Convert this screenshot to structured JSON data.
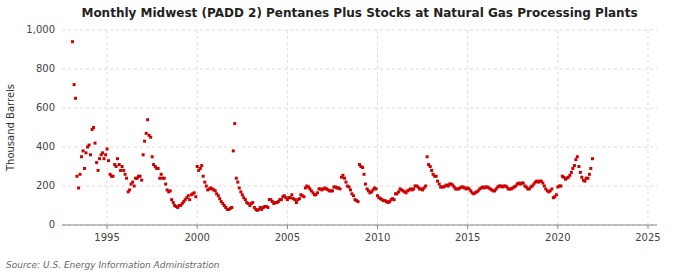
{
  "chart_data": {
    "type": "scatter",
    "title": "Monthly Midwest (PADD 2) Pentanes Plus Stocks at Natural Gas Processing Plants",
    "y_label": "Thousand Barrels",
    "source": "Source: U.S. Energy Information Administration",
    "color": "#cc0000",
    "marker": "square",
    "grid": true,
    "xlim": [
      1992.5,
      2025.5
    ],
    "ylim": [
      0,
      1000
    ],
    "xticks": [
      1995,
      2000,
      2005,
      2010,
      2015,
      2020,
      2025
    ],
    "yticks": [
      0,
      200,
      400,
      600,
      800,
      {
        "value": 1000,
        "label": "1,000"
      }
    ],
    "x": [
      1993.08,
      1993.17,
      1993.25,
      1993.33,
      1993.42,
      1993.5,
      1993.58,
      1993.67,
      1993.75,
      1993.83,
      1993.92,
      1994.0,
      1994.08,
      1994.17,
      1994.25,
      1994.33,
      1994.42,
      1994.5,
      1994.58,
      1994.67,
      1994.75,
      1994.83,
      1994.92,
      1995.0,
      1995.08,
      1995.17,
      1995.25,
      1995.33,
      1995.42,
      1995.5,
      1995.58,
      1995.67,
      1995.75,
      1995.83,
      1995.92,
      1996.0,
      1996.08,
      1996.17,
      1996.25,
      1996.33,
      1996.42,
      1996.5,
      1996.58,
      1996.67,
      1996.75,
      1996.83,
      1996.92,
      1997.0,
      1997.08,
      1997.17,
      1997.25,
      1997.33,
      1997.42,
      1997.5,
      1997.58,
      1997.67,
      1997.75,
      1997.83,
      1997.92,
      1998.0,
      1998.08,
      1998.17,
      1998.25,
      1998.33,
      1998.42,
      1998.5,
      1998.58,
      1998.67,
      1998.75,
      1998.83,
      1998.92,
      1999.0,
      1999.08,
      1999.17,
      1999.25,
      1999.33,
      1999.42,
      1999.5,
      1999.58,
      1999.67,
      1999.75,
      1999.83,
      1999.92,
      2000.0,
      2000.08,
      2000.17,
      2000.25,
      2000.33,
      2000.42,
      2000.5,
      2000.58,
      2000.67,
      2000.75,
      2000.83,
      2000.92,
      2001.0,
      2001.08,
      2001.17,
      2001.25,
      2001.33,
      2001.42,
      2001.5,
      2001.58,
      2001.67,
      2001.75,
      2001.83,
      2001.92,
      2002.0,
      2002.08,
      2002.17,
      2002.25,
      2002.33,
      2002.42,
      2002.5,
      2002.58,
      2002.67,
      2002.75,
      2002.83,
      2002.92,
      2003.0,
      2003.08,
      2003.17,
      2003.25,
      2003.33,
      2003.42,
      2003.5,
      2003.58,
      2003.67,
      2003.75,
      2003.83,
      2003.92,
      2004.0,
      2004.08,
      2004.17,
      2004.25,
      2004.33,
      2004.42,
      2004.5,
      2004.58,
      2004.67,
      2004.75,
      2004.83,
      2004.92,
      2005.0,
      2005.08,
      2005.17,
      2005.25,
      2005.33,
      2005.42,
      2005.5,
      2005.58,
      2005.67,
      2005.75,
      2005.83,
      2005.92,
      2006.0,
      2006.08,
      2006.17,
      2006.25,
      2006.33,
      2006.42,
      2006.5,
      2006.58,
      2006.67,
      2006.75,
      2006.83,
      2006.92,
      2007.0,
      2007.08,
      2007.17,
      2007.25,
      2007.33,
      2007.42,
      2007.5,
      2007.58,
      2007.67,
      2007.75,
      2007.83,
      2007.92,
      2008.0,
      2008.08,
      2008.17,
      2008.25,
      2008.33,
      2008.42,
      2008.5,
      2008.58,
      2008.67,
      2008.75,
      2008.83,
      2008.92,
      2009.0,
      2009.08,
      2009.17,
      2009.25,
      2009.33,
      2009.42,
      2009.5,
      2009.58,
      2009.67,
      2009.75,
      2009.83,
      2009.92,
      2010.0,
      2010.08,
      2010.17,
      2010.25,
      2010.33,
      2010.42,
      2010.5,
      2010.58,
      2010.67,
      2010.75,
      2010.83,
      2010.92,
      2011.0,
      2011.08,
      2011.17,
      2011.25,
      2011.33,
      2011.42,
      2011.5,
      2011.58,
      2011.67,
      2011.75,
      2011.83,
      2011.92,
      2012.0,
      2012.08,
      2012.17,
      2012.25,
      2012.33,
      2012.42,
      2012.5,
      2012.58,
      2012.67,
      2012.75,
      2012.83,
      2012.92,
      2013.0,
      2013.08,
      2013.17,
      2013.25,
      2013.33,
      2013.42,
      2013.5,
      2013.58,
      2013.67,
      2013.75,
      2013.83,
      2013.92,
      2014.0,
      2014.08,
      2014.17,
      2014.25,
      2014.33,
      2014.42,
      2014.5,
      2014.58,
      2014.67,
      2014.75,
      2014.83,
      2014.92,
      2015.0,
      2015.08,
      2015.17,
      2015.25,
      2015.33,
      2015.42,
      2015.5,
      2015.58,
      2015.67,
      2015.75,
      2015.83,
      2015.92,
      2016.0,
      2016.08,
      2016.17,
      2016.25,
      2016.33,
      2016.42,
      2016.5,
      2016.58,
      2016.67,
      2016.75,
      2016.83,
      2016.92,
      2017.0,
      2017.08,
      2017.17,
      2017.25,
      2017.33,
      2017.42,
      2017.5,
      2017.58,
      2017.67,
      2017.75,
      2017.83,
      2017.92,
      2018.0,
      2018.08,
      2018.17,
      2018.25,
      2018.33,
      2018.42,
      2018.5,
      2018.58,
      2018.67,
      2018.75,
      2018.83,
      2018.92,
      2019.0,
      2019.08,
      2019.17,
      2019.25,
      2019.33,
      2019.42,
      2019.5,
      2019.58,
      2019.67,
      2019.75,
      2019.83,
      2019.92,
      2020.0,
      2020.08,
      2020.17,
      2020.25,
      2020.33,
      2020.42,
      2020.5,
      2020.58,
      2020.67,
      2020.75,
      2020.83,
      2020.92,
      2021.0,
      2021.08,
      2021.17,
      2021.25,
      2021.33,
      2021.42,
      2021.5,
      2021.58,
      2021.67,
      2021.75,
      2021.83,
      2021.92
    ],
    "values": [
      940,
      720,
      650,
      250,
      190,
      260,
      350,
      380,
      290,
      370,
      400,
      410,
      360,
      490,
      500,
      420,
      320,
      280,
      340,
      360,
      370,
      340,
      360,
      390,
      330,
      260,
      250,
      250,
      310,
      300,
      340,
      310,
      280,
      300,
      280,
      260,
      240,
      170,
      180,
      210,
      220,
      200,
      240,
      240,
      250,
      250,
      230,
      360,
      430,
      470,
      540,
      460,
      450,
      350,
      310,
      300,
      290,
      290,
      240,
      260,
      240,
      240,
      210,
      180,
      170,
      175,
      130,
      115,
      100,
      95,
      90,
      100,
      100,
      110,
      120,
      130,
      140,
      150,
      130,
      155,
      160,
      165,
      145,
      300,
      280,
      290,
      305,
      250,
      220,
      200,
      180,
      185,
      190,
      185,
      180,
      175,
      160,
      150,
      135,
      120,
      110,
      100,
      90,
      80,
      80,
      85,
      90,
      380,
      520,
      240,
      220,
      190,
      170,
      155,
      140,
      130,
      115,
      110,
      100,
      110,
      115,
      90,
      80,
      75,
      80,
      90,
      80,
      90,
      95,
      95,
      90,
      130,
      130,
      120,
      110,
      115,
      115,
      120,
      130,
      130,
      145,
      150,
      140,
      130,
      140,
      140,
      155,
      135,
      130,
      115,
      130,
      135,
      155,
      150,
      145,
      190,
      200,
      195,
      185,
      175,
      165,
      155,
      155,
      165,
      185,
      185,
      180,
      185,
      190,
      185,
      180,
      175,
      175,
      175,
      195,
      195,
      190,
      190,
      185,
      245,
      255,
      240,
      220,
      200,
      195,
      180,
      160,
      150,
      130,
      125,
      120,
      310,
      300,
      295,
      260,
      210,
      185,
      175,
      165,
      170,
      180,
      190,
      185,
      150,
      140,
      135,
      130,
      125,
      125,
      120,
      115,
      120,
      130,
      135,
      130,
      160,
      160,
      170,
      185,
      180,
      175,
      170,
      165,
      175,
      180,
      185,
      180,
      185,
      200,
      200,
      195,
      185,
      185,
      180,
      190,
      200,
      350,
      310,
      300,
      280,
      260,
      250,
      250,
      225,
      210,
      195,
      195,
      195,
      200,
      205,
      200,
      210,
      210,
      205,
      195,
      185,
      185,
      185,
      190,
      195,
      195,
      190,
      185,
      190,
      185,
      175,
      165,
      160,
      165,
      170,
      175,
      185,
      190,
      195,
      190,
      195,
      195,
      190,
      185,
      180,
      175,
      175,
      185,
      195,
      200,
      200,
      195,
      200,
      200,
      195,
      185,
      185,
      185,
      190,
      195,
      200,
      210,
      215,
      210,
      215,
      215,
      200,
      195,
      185,
      185,
      195,
      200,
      210,
      220,
      225,
      220,
      225,
      225,
      215,
      200,
      185,
      175,
      170,
      175,
      185,
      140,
      145,
      155,
      195,
      200,
      200,
      250,
      245,
      235,
      240,
      245,
      255,
      270,
      290,
      305,
      335,
      350,
      300,
      270,
      245,
      230,
      225,
      240,
      240,
      260,
      290,
      340
    ]
  }
}
